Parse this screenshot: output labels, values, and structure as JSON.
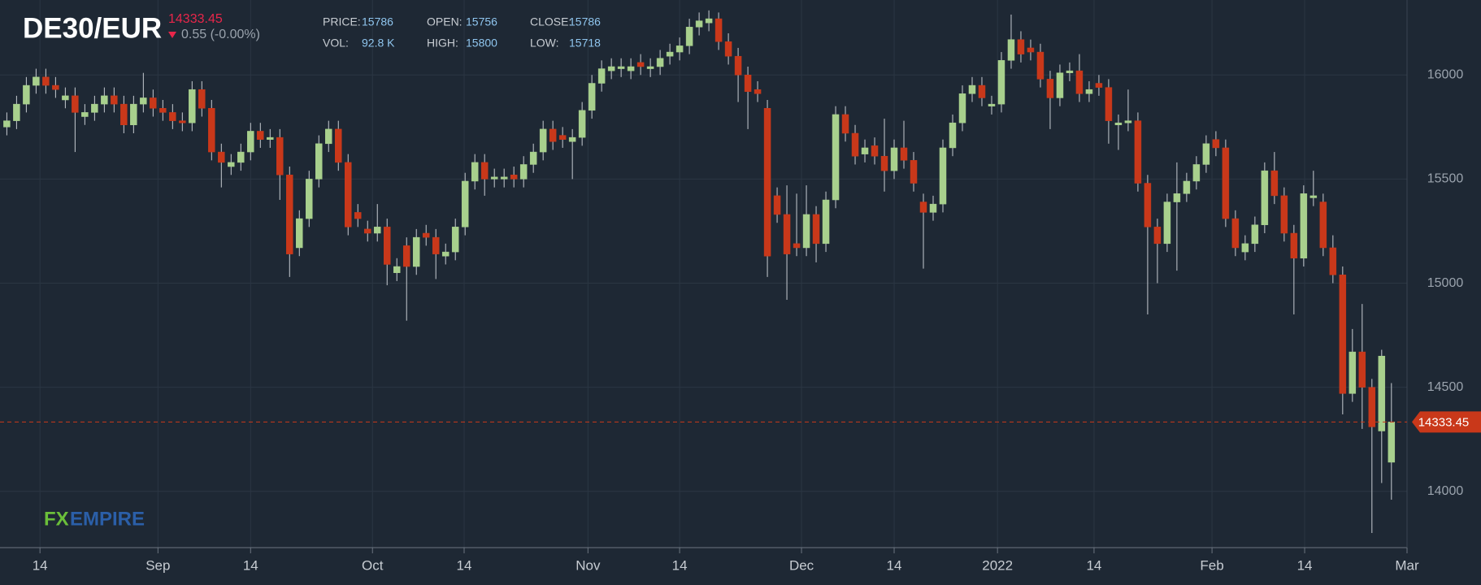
{
  "chart_data": {
    "type": "candlestick",
    "title": "DE30/EUR",
    "change_label": "0.55 (-0.00%)",
    "info": [
      {
        "label": "PRICE:",
        "value": "15786"
      },
      {
        "label": "OPEN:",
        "value": "15756"
      },
      {
        "label": "CLOSE:",
        "value": "15786"
      },
      {
        "label": "VOL:",
        "value": "92.8 K"
      },
      {
        "label": "HIGH:",
        "value": "15800"
      },
      {
        "label": "LOW:",
        "value": "15718"
      }
    ],
    "logo": [
      "FX",
      "EMPIRE"
    ],
    "up_color": "#a8d08d",
    "down_color": "#c9381a",
    "grid": true,
    "open": [
      15750,
      15780,
      15860,
      15950,
      15990,
      15950,
      15880,
      15900,
      15800,
      15820,
      15860,
      15900,
      15860,
      15760,
      15860,
      15890,
      15840,
      15820,
      15780,
      15770,
      15930,
      15840,
      15630,
      15560,
      15580,
      15630,
      15730,
      15690,
      15700,
      15520,
      15170,
      15310,
      15500,
      15670,
      15740,
      15580,
      15340,
      15260,
      15240,
      15270,
      15050,
      15180,
      15080,
      15240,
      15220,
      15130,
      15150,
      15270,
      15490,
      15580,
      15500,
      15500,
      15520,
      15500,
      15570,
      15630,
      15740,
      15710,
      15680,
      15700,
      15830,
      15960,
      16020,
      16030,
      16020,
      16060,
      16030,
      16040,
      16090,
      16110,
      16140,
      16230,
      16250,
      16270,
      16160,
      16090,
      16000,
      15930,
      15840,
      15420,
      15330,
      15190,
      15170,
      15330,
      15190,
      15400,
      15810,
      15720,
      15620,
      15660,
      15610,
      15540,
      15650,
      15590,
      15390,
      15340,
      15380,
      15650,
      15770,
      15910,
      15950,
      15850,
      15860,
      16070,
      16170,
      16130,
      16110,
      15980,
      15890,
      16010,
      16020,
      15910,
      15960,
      15940,
      15760,
      15770,
      15780,
      15480,
      15270,
      15190,
      15390,
      15430,
      15490,
      15570,
      15690,
      15650,
      15310,
      15150,
      15190,
      15280,
      15540,
      15420,
      15240,
      15120,
      15410,
      15390,
      15170,
      15040,
      14470,
      14670,
      14500,
      14290,
      14140
    ],
    "high": [
      15820,
      15900,
      15990,
      16030,
      16030,
      15990,
      15940,
      15940,
      15860,
      15900,
      15940,
      15940,
      15900,
      15900,
      16010,
      15930,
      15880,
      15860,
      15820,
      15970,
      15970,
      15880,
      15670,
      15620,
      15670,
      15770,
      15770,
      15740,
      15740,
      15560,
      15350,
      15540,
      15710,
      15780,
      15780,
      15620,
      15380,
      15300,
      15380,
      15310,
      15120,
      15220,
      15260,
      15280,
      15260,
      15190,
      15310,
      15530,
      15620,
      15620,
      15550,
      15550,
      15560,
      15610,
      15670,
      15780,
      15780,
      15750,
      15740,
      15870,
      16000,
      16070,
      16080,
      16080,
      16080,
      16100,
      16080,
      16120,
      16150,
      16180,
      16270,
      16300,
      16310,
      16300,
      16200,
      16130,
      16040,
      15970,
      15880,
      15460,
      15470,
      15430,
      15470,
      15370,
      15440,
      15850,
      15850,
      15760,
      15690,
      15700,
      15790,
      15690,
      15780,
      15630,
      15430,
      15420,
      15690,
      15810,
      15950,
      15990,
      15990,
      15900,
      16110,
      16290,
      16210,
      16170,
      16150,
      16020,
      16050,
      16060,
      16100,
      15970,
      16000,
      15980,
      15810,
      15930,
      15820,
      15520,
      15310,
      15430,
      15580,
      15530,
      15610,
      15710,
      15730,
      15690,
      15350,
      15230,
      15320,
      15580,
      15630,
      15460,
      15280,
      15470,
      15540,
      15430,
      15230,
      15080,
      14780,
      14900,
      14540,
      14680,
      14520
    ],
    "low": [
      15710,
      15740,
      15820,
      15910,
      15910,
      15890,
      15840,
      15630,
      15760,
      15780,
      15820,
      15820,
      15720,
      15720,
      15820,
      15800,
      15780,
      15740,
      15730,
      15730,
      15800,
      15590,
      15460,
      15520,
      15540,
      15590,
      15650,
      15650,
      15400,
      15030,
      15130,
      15270,
      15460,
      15630,
      15540,
      15230,
      15270,
      15200,
      15200,
      14990,
      15010,
      14820,
      15040,
      15180,
      15020,
      15090,
      15110,
      15230,
      15450,
      15420,
      15460,
      15460,
      15460,
      15460,
      15530,
      15590,
      15640,
      15650,
      15500,
      15660,
      15790,
      15920,
      15980,
      15990,
      15980,
      16000,
      15990,
      16000,
      16050,
      16070,
      16100,
      16190,
      16210,
      16120,
      16050,
      15870,
      15740,
      15870,
      15030,
      15290,
      14920,
      15130,
      15130,
      15100,
      15150,
      15360,
      15680,
      15570,
      15580,
      15570,
      15440,
      15500,
      15550,
      15440,
      15070,
      15300,
      15340,
      15610,
      15730,
      15870,
      15850,
      15810,
      15820,
      16030,
      16060,
      16070,
      15940,
      15740,
      15850,
      15970,
      15870,
      15870,
      15900,
      15670,
      15640,
      15730,
      15440,
      14850,
      15000,
      15150,
      15060,
      15390,
      15450,
      15530,
      15610,
      15270,
      15130,
      15110,
      15150,
      15240,
      15380,
      15200,
      14850,
      15080,
      15370,
      15130,
      15000,
      14370,
      14430,
      14300,
      13800,
      14040,
      13960
    ],
    "close": [
      15780,
      15860,
      15950,
      15990,
      15950,
      15930,
      15900,
      15820,
      15820,
      15860,
      15900,
      15860,
      15760,
      15860,
      15890,
      15840,
      15820,
      15780,
      15770,
      15930,
      15840,
      15630,
      15580,
      15580,
      15630,
      15730,
      15690,
      15700,
      15520,
      15140,
      15310,
      15500,
      15670,
      15740,
      15580,
      15270,
      15310,
      15240,
      15270,
      15090,
      15080,
      15080,
      15220,
      15220,
      15140,
      15150,
      15270,
      15490,
      15580,
      15500,
      15510,
      15510,
      15500,
      15570,
      15630,
      15740,
      15680,
      15690,
      15700,
      15830,
      15960,
      16030,
      16040,
      16040,
      16040,
      16040,
      16040,
      16080,
      16110,
      16140,
      16230,
      16260,
      16270,
      16160,
      16090,
      16000,
      15920,
      15910,
      15130,
      15330,
      15140,
      15170,
      15330,
      15190,
      15400,
      15810,
      15720,
      15610,
      15650,
      15610,
      15540,
      15650,
      15590,
      15480,
      15340,
      15380,
      15650,
      15770,
      15910,
      15950,
      15890,
      15860,
      16070,
      16170,
      16100,
      16110,
      15980,
      15890,
      16010,
      16020,
      15910,
      15930,
      15940,
      15780,
      15770,
      15780,
      15480,
      15270,
      15190,
      15390,
      15430,
      15490,
      15570,
      15670,
      15650,
      15310,
      15170,
      15190,
      15280,
      15540,
      15420,
      15240,
      15120,
      15430,
      15420,
      15170,
      15040,
      14470,
      14670,
      14500,
      14310,
      14650,
      14333.45
    ],
    "xlim": [
      -0.7,
      143.6
    ],
    "xticks": [
      {
        "value": 3.4,
        "label": "14"
      },
      {
        "value": 15.5,
        "label": "Sep"
      },
      {
        "value": 25.0,
        "label": "14"
      },
      {
        "value": 37.5,
        "label": "Oct"
      },
      {
        "value": 46.9,
        "label": "14"
      },
      {
        "value": 59.6,
        "label": "Nov"
      },
      {
        "value": 69.0,
        "label": "14"
      },
      {
        "value": 81.5,
        "label": "Dec"
      },
      {
        "value": 91.0,
        "label": "14"
      },
      {
        "value": 101.6,
        "label": "2022"
      },
      {
        "value": 111.5,
        "label": "14"
      },
      {
        "value": 123.6,
        "label": "Feb"
      },
      {
        "value": 133.1,
        "label": "14"
      },
      {
        "value": 143.6,
        "label": "Mar"
      }
    ],
    "ylim": [
      13730,
      16360
    ],
    "yticks": [
      14000,
      14500,
      15000,
      15500,
      16000
    ]
  }
}
